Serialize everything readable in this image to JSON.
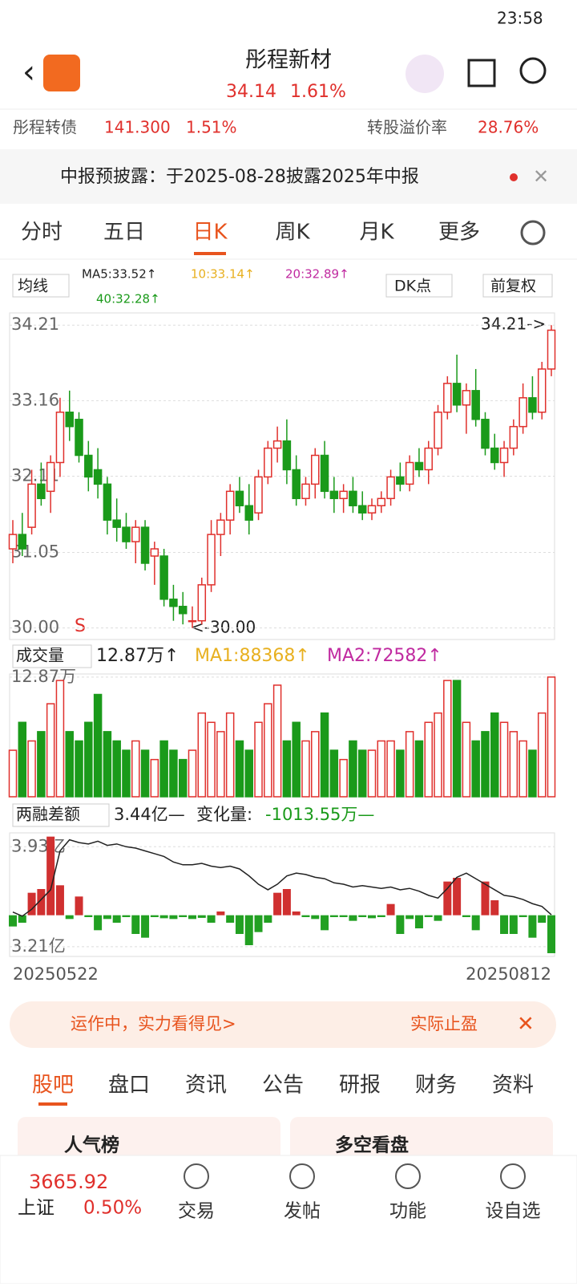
{
  "status": {
    "time": "23:58"
  },
  "header": {
    "title": "彤程新材",
    "price": "34.14",
    "change": "1.61%"
  },
  "bond": {
    "name": "彤程转债",
    "price": "141.300",
    "change": "1.51%",
    "premium_label": "转股溢价率",
    "premium": "28.76%"
  },
  "notice": {
    "text": "中报预披露：于2025-08-28披露2025年中报"
  },
  "tabs": [
    "分时",
    "五日",
    "日K",
    "周K",
    "月K",
    "更多"
  ],
  "ma_legend": {
    "selector": "均线",
    "ma5": "MA5:33.52↑",
    "ma10": "10:33.14↑",
    "ma20": "20:32.89↑",
    "ma40": "40:32.28↑",
    "dk": "DK点",
    "adjust": "前复权"
  },
  "chart_data": {
    "type": "candlestick",
    "ylim": [
      29.84,
      34.38
    ],
    "yticks": [
      34.21,
      33.16,
      32.11,
      31.05,
      {
        "value": 30,
        "label": "30.00"
      }
    ],
    "high_label": "34.21->",
    "low_label": "<-30.00",
    "signal": "S",
    "candles": [
      [
        31.1,
        31.5,
        30.9,
        31.3
      ],
      [
        31.3,
        31.6,
        31.0,
        31.1
      ],
      [
        31.4,
        32.2,
        31.3,
        32.0
      ],
      [
        32.0,
        32.3,
        31.7,
        31.8
      ],
      [
        31.9,
        32.4,
        31.6,
        32.3
      ],
      [
        32.3,
        33.2,
        32.1,
        33.0
      ],
      [
        33.0,
        33.3,
        32.6,
        32.8
      ],
      [
        32.9,
        33.0,
        32.3,
        32.4
      ],
      [
        32.4,
        32.6,
        31.9,
        32.1
      ],
      [
        32.2,
        32.5,
        31.8,
        32.0
      ],
      [
        32.0,
        32.1,
        31.3,
        31.5
      ],
      [
        31.5,
        31.8,
        31.2,
        31.4
      ],
      [
        31.4,
        31.6,
        31.1,
        31.2
      ],
      [
        31.2,
        31.5,
        30.9,
        31.4
      ],
      [
        31.4,
        31.5,
        30.8,
        30.9
      ],
      [
        31.0,
        31.2,
        30.6,
        31.1
      ],
      [
        31.0,
        31.1,
        30.3,
        30.4
      ],
      [
        30.4,
        30.6,
        30.1,
        30.3
      ],
      [
        30.3,
        30.5,
        30.05,
        30.2
      ],
      [
        30.1,
        30.3,
        30.0,
        30.1
      ],
      [
        30.1,
        30.7,
        30.05,
        30.6
      ],
      [
        30.6,
        31.5,
        30.5,
        31.3
      ],
      [
        31.3,
        31.6,
        31.0,
        31.5
      ],
      [
        31.5,
        32.0,
        31.3,
        31.9
      ],
      [
        31.9,
        32.1,
        31.6,
        31.7
      ],
      [
        31.7,
        32.0,
        31.3,
        31.5
      ],
      [
        31.6,
        32.2,
        31.5,
        32.1
      ],
      [
        32.1,
        32.6,
        32.0,
        32.5
      ],
      [
        32.5,
        32.8,
        32.3,
        32.6
      ],
      [
        32.6,
        32.9,
        32.0,
        32.2
      ],
      [
        32.2,
        32.4,
        31.7,
        31.8
      ],
      [
        31.8,
        32.1,
        31.7,
        32.0
      ],
      [
        32.0,
        32.5,
        31.8,
        32.4
      ],
      [
        32.4,
        32.6,
        31.8,
        31.9
      ],
      [
        31.9,
        32.1,
        31.6,
        31.8
      ],
      [
        31.8,
        32.0,
        31.6,
        31.9
      ],
      [
        31.9,
        32.1,
        31.6,
        31.7
      ],
      [
        31.7,
        31.9,
        31.5,
        31.6
      ],
      [
        31.6,
        31.8,
        31.5,
        31.7
      ],
      [
        31.7,
        31.9,
        31.6,
        31.8
      ],
      [
        31.8,
        32.2,
        31.7,
        32.1
      ],
      [
        32.1,
        32.3,
        31.9,
        32.0
      ],
      [
        32.0,
        32.4,
        31.9,
        32.3
      ],
      [
        32.3,
        32.5,
        32.1,
        32.2
      ],
      [
        32.2,
        32.6,
        32.0,
        32.5
      ],
      [
        32.5,
        33.1,
        32.4,
        33.0
      ],
      [
        33.0,
        33.5,
        32.9,
        33.4
      ],
      [
        33.4,
        33.8,
        33.0,
        33.1
      ],
      [
        33.1,
        33.4,
        32.7,
        33.3
      ],
      [
        33.3,
        33.6,
        32.8,
        32.9
      ],
      [
        32.9,
        33.0,
        32.4,
        32.5
      ],
      [
        32.5,
        32.7,
        32.2,
        32.3
      ],
      [
        32.3,
        32.6,
        32.1,
        32.5
      ],
      [
        32.5,
        32.9,
        32.4,
        32.8
      ],
      [
        32.8,
        33.4,
        32.7,
        33.2
      ],
      [
        33.2,
        33.5,
        32.9,
        33.0
      ],
      [
        33.0,
        33.7,
        32.9,
        33.6
      ],
      [
        33.6,
        34.21,
        33.5,
        34.14
      ]
    ],
    "volume": {
      "selector": "成交量",
      "current": "12.87万↑",
      "ma1": "MA1:88368↑",
      "ma2": "MA2:72582↑",
      "ylim": [
        0,
        13.2
      ],
      "yticks": [
        {
          "value": 12.87,
          "label": "12.87万"
        }
      ],
      "values": [
        5,
        8,
        6,
        7,
        10,
        12.5,
        7,
        6,
        8,
        11,
        7,
        6,
        5,
        6,
        5,
        4,
        6,
        5,
        4,
        5,
        9,
        8,
        7,
        9,
        6,
        5,
        8,
        10,
        12,
        6,
        8,
        6,
        7,
        9,
        5,
        4,
        6,
        5,
        5,
        6,
        6,
        5,
        7,
        6,
        8,
        9,
        12.5,
        12.5,
        8,
        6,
        7,
        9,
        8,
        7,
        6,
        5,
        9,
        12.87
      ]
    },
    "margin": {
      "selector": "两融差额",
      "current": "3.44亿—",
      "change_label": "变化量:",
      "change": "-1013.55万—",
      "ylim": [
        3.14,
        4.03
      ],
      "yticks": [
        {
          "value": 3.93,
          "label": "3.93亿"
        },
        {
          "value": 3.21,
          "label": "3.21亿"
        }
      ],
      "values": [
        3.46,
        3.43,
        3.48,
        3.55,
        3.62,
        3.9,
        3.98,
        3.96,
        3.95,
        3.97,
        3.94,
        3.95,
        3.93,
        3.92,
        3.9,
        3.88,
        3.86,
        3.82,
        3.8,
        3.8,
        3.81,
        3.79,
        3.78,
        3.79,
        3.77,
        3.72,
        3.66,
        3.62,
        3.66,
        3.72,
        3.74,
        3.73,
        3.71,
        3.7,
        3.67,
        3.66,
        3.64,
        3.65,
        3.64,
        3.63,
        3.64,
        3.62,
        3.63,
        3.61,
        3.58,
        3.56,
        3.63,
        3.71,
        3.74,
        3.7,
        3.66,
        3.62,
        3.58,
        3.57,
        3.55,
        3.52,
        3.5,
        3.44
      ],
      "changes_lim": [
        -1100,
        2200
      ],
      "changes": [
        -300,
        -200,
        600,
        700,
        2100,
        800,
        -100,
        500,
        -50,
        -400,
        -100,
        -200,
        -50,
        -500,
        -600,
        -50,
        -80,
        -100,
        -50,
        -100,
        -70,
        -200,
        100,
        -200,
        -500,
        -800,
        -450,
        -200,
        600,
        700,
        100,
        -50,
        -100,
        -400,
        -50,
        -50,
        -150,
        -50,
        -80,
        -50,
        300,
        -500,
        -100,
        -350,
        -50,
        -150,
        900,
        1000,
        -50,
        -400,
        900,
        400,
        -500,
        -500,
        -50,
        -600,
        -200,
        -1013.55
      ]
    },
    "x_start": "20250522",
    "x_end": "20250812"
  },
  "banner": {
    "left": "运作中，实力看得见>",
    "right": "实际止盈"
  },
  "section_tabs": [
    "股吧",
    "盘口",
    "资讯",
    "公告",
    "研报",
    "财务",
    "资料"
  ],
  "cards": [
    "人气榜",
    "多空看盘"
  ],
  "bottom": {
    "index_value": "3665.92",
    "index_name": "上证",
    "index_change": "0.50%",
    "items": [
      "交易",
      "发帖",
      "功能",
      "设自选"
    ]
  }
}
